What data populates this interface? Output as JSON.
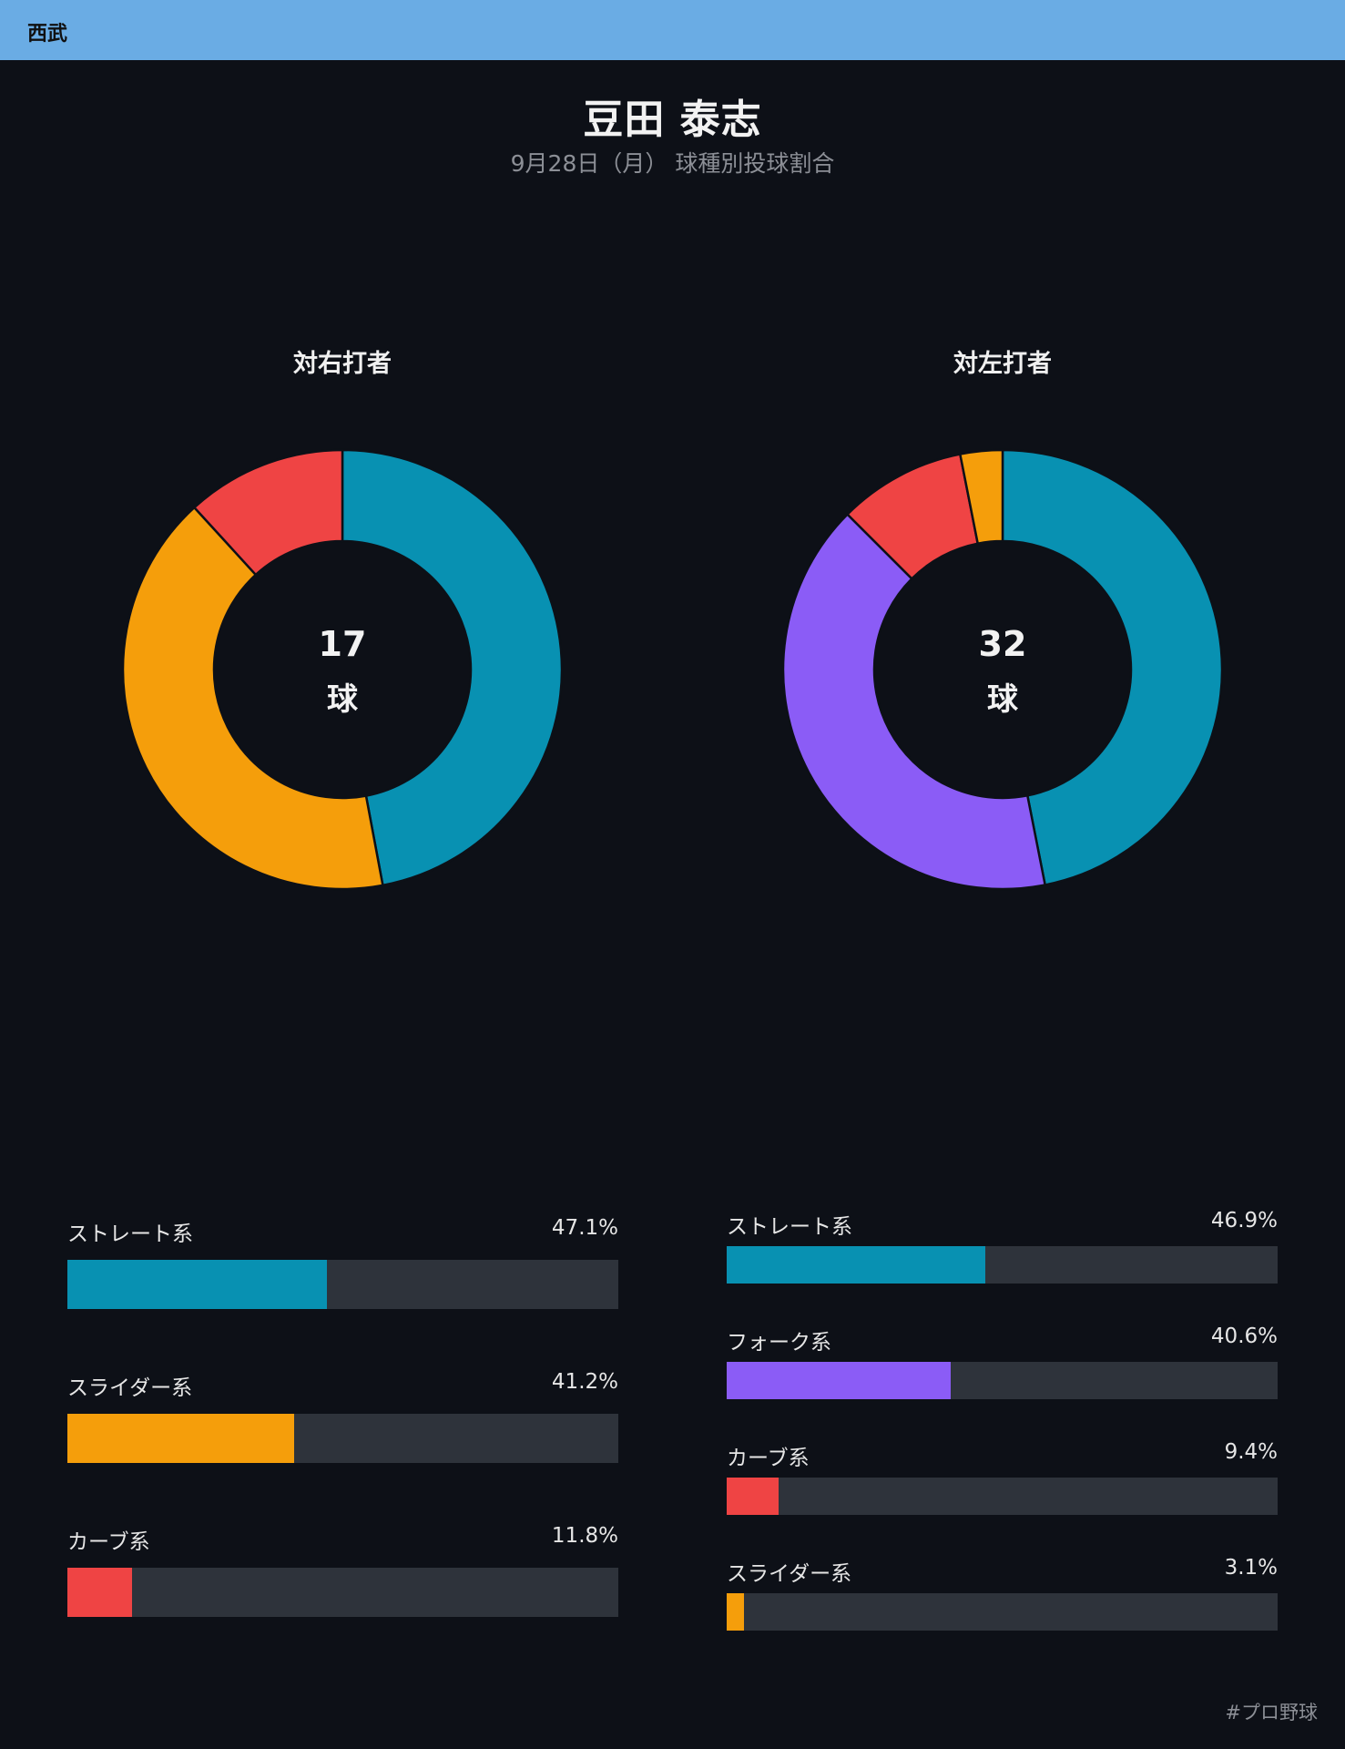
{
  "team": "西武",
  "player": "豆田 泰志",
  "subtitle": "9月28日（月） 球種別投球割合",
  "hashtag": "#プロ野球",
  "colors": {
    "ストレート系": "#0891b2",
    "スライダー系": "#f59e0b",
    "カーブ系": "#ef4444",
    "フォーク系": "#8b5cf6"
  },
  "chart_data": [
    {
      "type": "pie",
      "title": "対右打者",
      "total": "17",
      "unit": "球",
      "categories": [
        "ストレート系",
        "スライダー系",
        "カーブ系"
      ],
      "values": [
        47.1,
        41.2,
        11.8
      ],
      "value_labels": [
        "47.1%",
        "41.2%",
        "11.8%"
      ]
    },
    {
      "type": "pie",
      "title": "対左打者",
      "total": "32",
      "unit": "球",
      "categories": [
        "ストレート系",
        "フォーク系",
        "カーブ系",
        "スライダー系"
      ],
      "values": [
        46.9,
        40.6,
        9.4,
        3.1
      ],
      "value_labels": [
        "46.9%",
        "40.6%",
        "9.4%",
        "3.1%"
      ]
    }
  ]
}
